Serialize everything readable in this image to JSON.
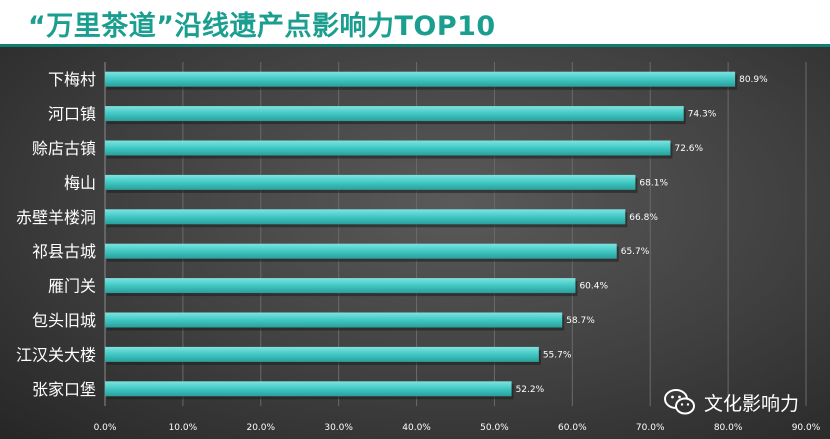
{
  "header": {
    "title": "“万里茶道”沿线遗产点影响力TOP10"
  },
  "watermark": {
    "text": "文化影响力",
    "icon": "wechat-icon"
  },
  "colors": {
    "bar": "#40c8c4",
    "title": "#1a9e8f",
    "background": "#3d3d3d"
  },
  "chart_data": {
    "type": "bar",
    "orientation": "horizontal",
    "title": "“万里茶道”沿线遗产点影响力TOP10",
    "categories": [
      "下梅村",
      "河口镇",
      "赊店古镇",
      "梅山",
      "赤壁羊楼洞",
      "祁县古城",
      "雁门关",
      "包头旧城",
      "江汉关大楼",
      "张家口堡"
    ],
    "values": [
      80.9,
      74.3,
      72.6,
      68.1,
      66.8,
      65.7,
      60.4,
      58.7,
      55.7,
      52.2
    ],
    "value_labels": [
      "80.9%",
      "74.3%",
      "72.6%",
      "68.1%",
      "66.8%",
      "65.7%",
      "60.4%",
      "58.7%",
      "55.7%",
      "52.2%"
    ],
    "xlim": [
      0,
      90
    ],
    "xticks": [
      0,
      10,
      20,
      30,
      40,
      50,
      60,
      70,
      80,
      90
    ],
    "xtick_labels": [
      "0.0%",
      "10.0%",
      "20.0%",
      "30.0%",
      "40.0%",
      "50.0%",
      "60.0%",
      "70.0%",
      "80.0%",
      "90.0%"
    ],
    "grid": true,
    "legend": "none",
    "xlabel": "",
    "ylabel": ""
  }
}
